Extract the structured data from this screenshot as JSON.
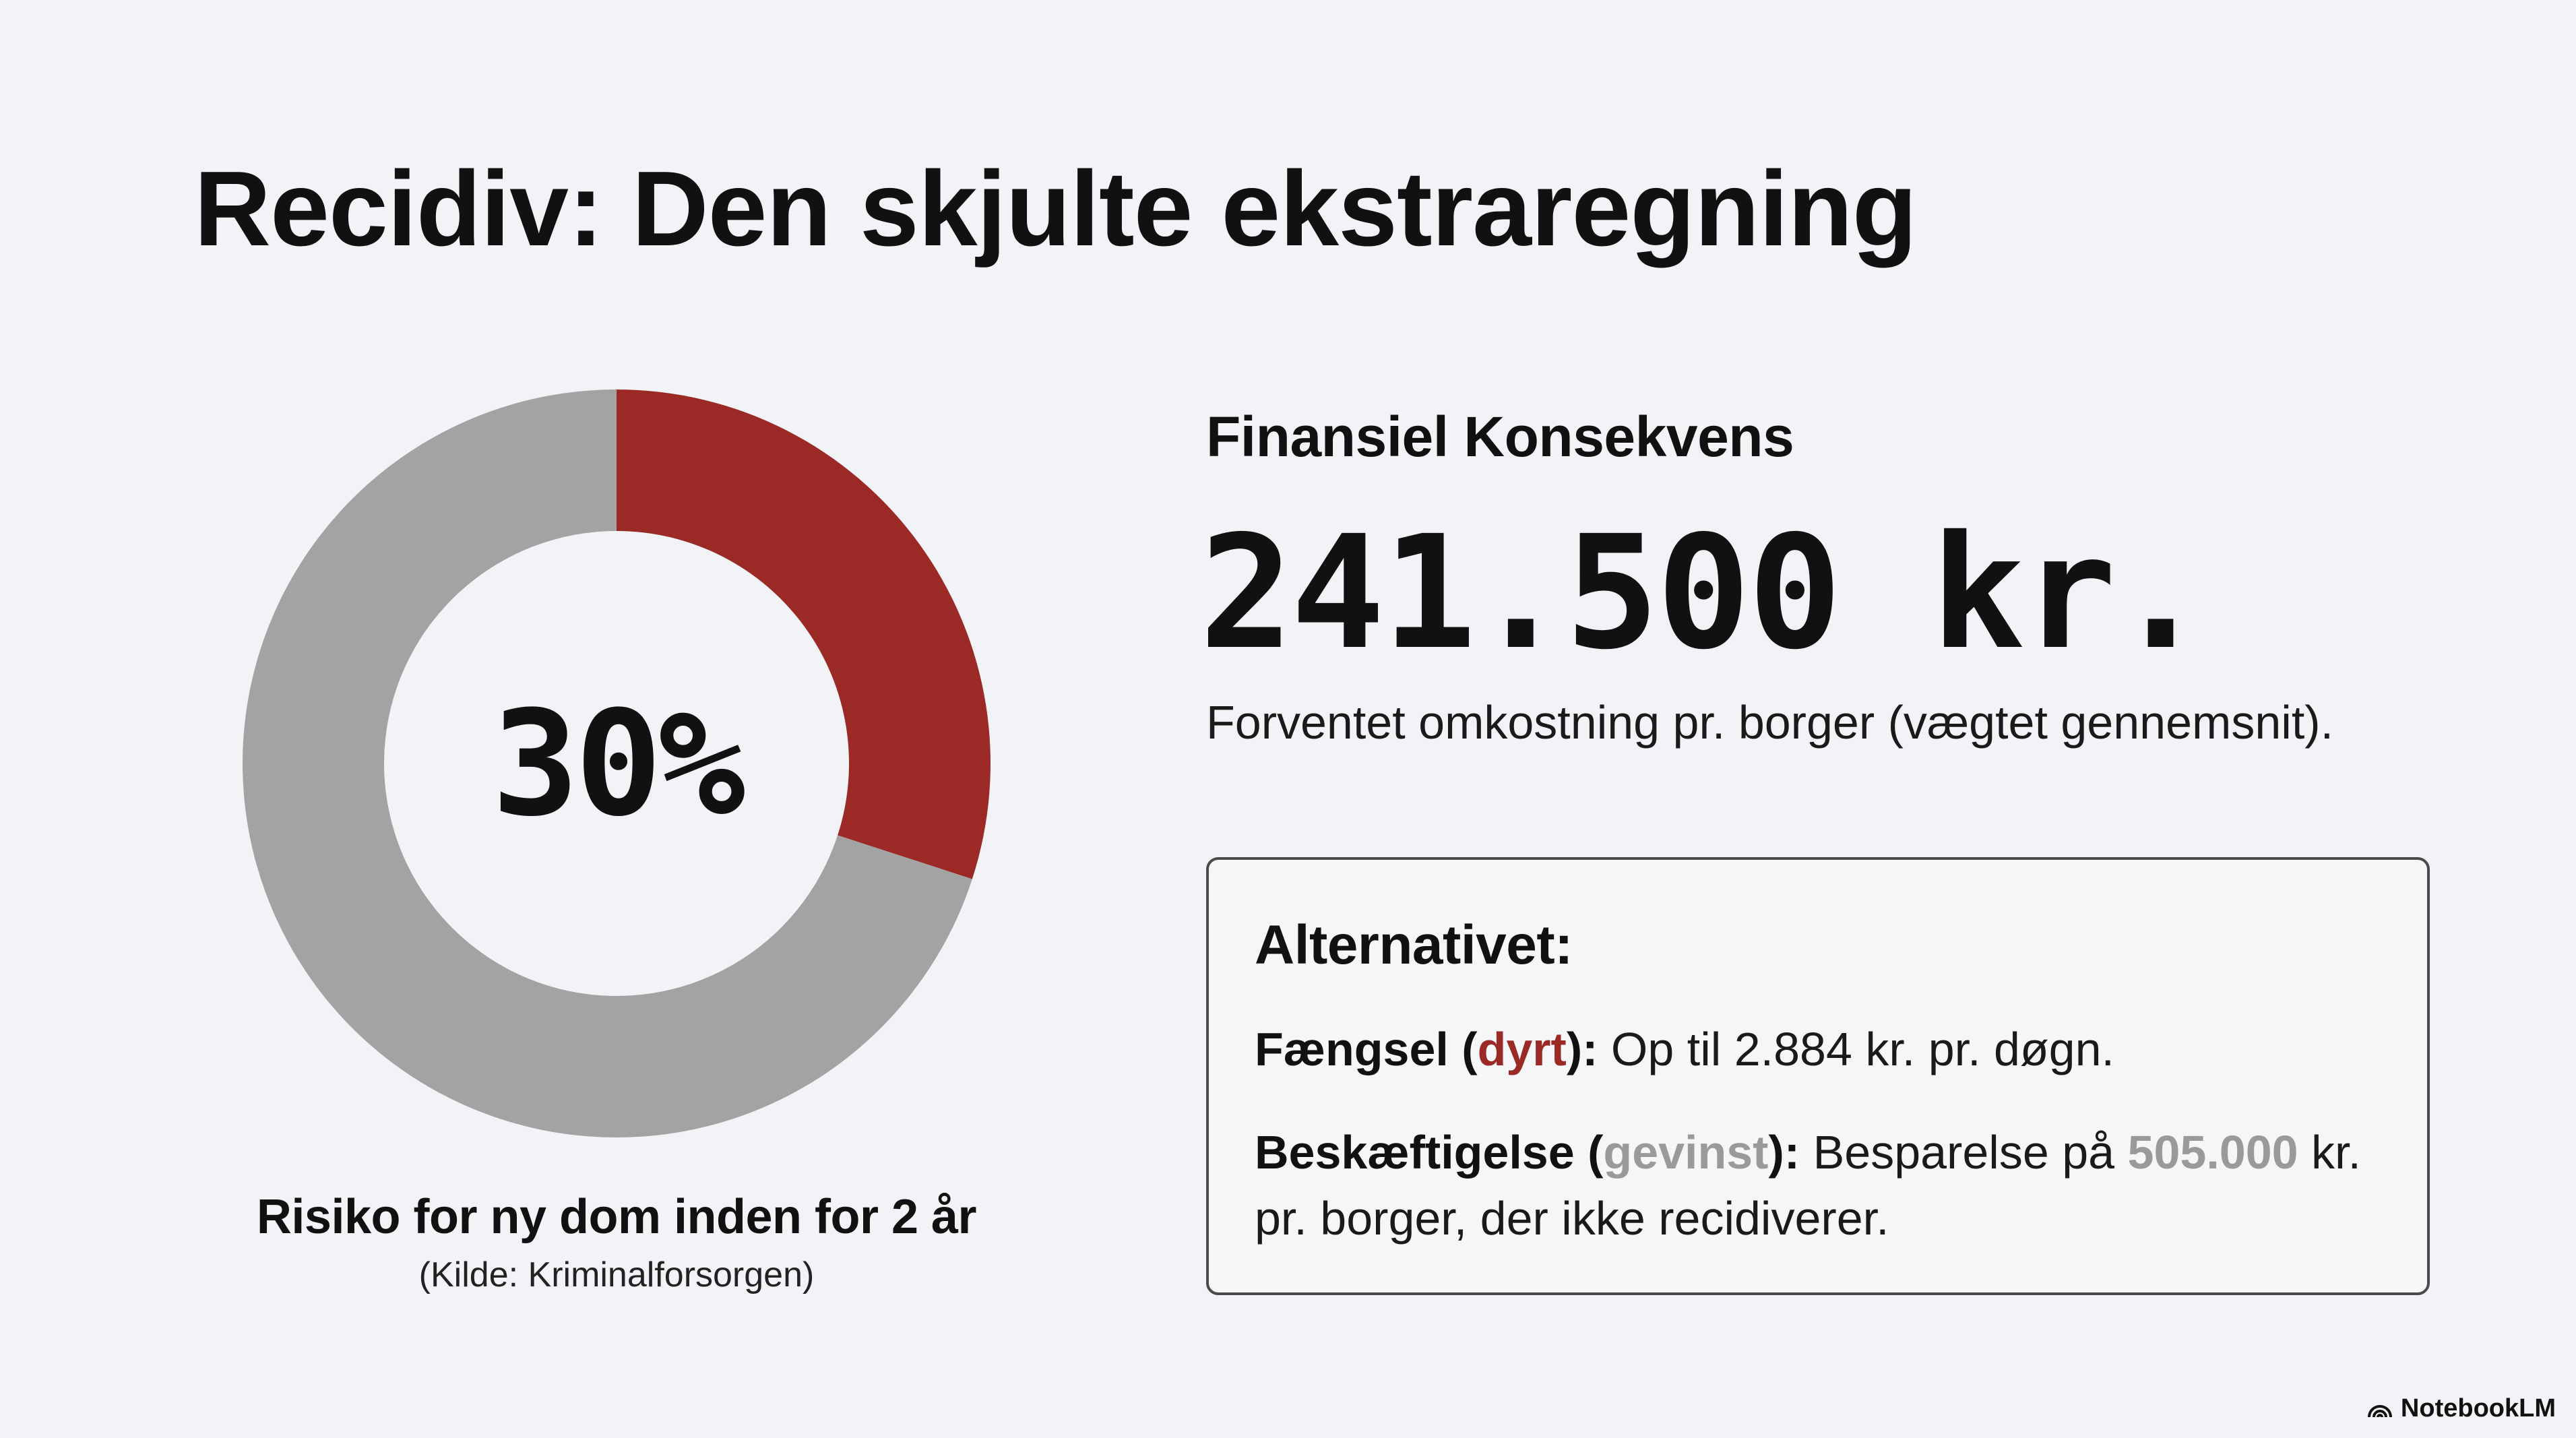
{
  "slide": {
    "title": "Recidiv: Den skjulte ekstraregning"
  },
  "chart_data": {
    "type": "pie",
    "center_label": "30%",
    "slices": [
      {
        "label": "",
        "value": 30,
        "color": "#9b2a27"
      },
      {
        "label": "",
        "value": 70,
        "color": "#a3a3a3"
      }
    ],
    "caption": "Risiko for ny dom inden for 2 år",
    "source": "(Kilde: Kriminalforsorgen)"
  },
  "financial": {
    "heading": "Finansiel Konsekvens",
    "amount": "241.500 kr.",
    "subtitle": "Forventet omkostning pr. borger (vægtet gennemsnit)."
  },
  "alternative": {
    "heading": "Alternativet:",
    "items": [
      {
        "label": "Fængsel (",
        "keyword": "dyrt",
        "label_end": "):",
        "text_before": " Op til 2.884 kr. pr. døgn.",
        "highlight": "",
        "text_after": ""
      },
      {
        "label": "Beskæftigelse (",
        "keyword": "gevinst",
        "label_end": "):",
        "text_before": " Besparelse på ",
        "highlight": "505.000",
        "text_after": " kr. pr. borger, der ikke recidiverer."
      }
    ]
  },
  "colors": {
    "accent_red": "#9b2a27",
    "neutral_grey": "#a3a3a3",
    "background": "#f1f3f6"
  },
  "branding": {
    "name": "NotebookLM",
    "icon": "notebooklm-logo-icon"
  }
}
